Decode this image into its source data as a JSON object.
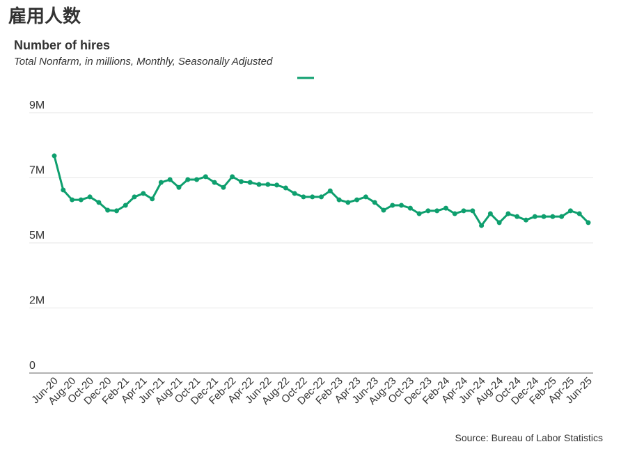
{
  "header": {
    "title": "雇用人数"
  },
  "chart_data": {
    "type": "line",
    "title": "Number of hires",
    "subtitle": "Total Nonfarm, in millions, Monthly, Seasonally Adjusted",
    "source": "Source: Bureau of Labor Statistics",
    "color": "#0e9f6e",
    "categories": [
      "Jun-20",
      null,
      "Aug-20",
      null,
      "Oct-20",
      null,
      "Dec-20",
      null,
      "Feb-21",
      null,
      "Apr-21",
      null,
      "Jun-21",
      null,
      "Aug-21",
      null,
      "Oct-21",
      null,
      "Dec-21",
      null,
      "Feb-22",
      null,
      "Apr-22",
      null,
      "Jun-22",
      null,
      "Aug-22",
      null,
      "Oct-22",
      null,
      "Dec-22",
      null,
      "Feb-23",
      null,
      "Apr-23",
      null,
      "Jun-23",
      null,
      "Aug-23",
      null,
      "Oct-23",
      null,
      "Dec-23",
      null,
      "Feb-24",
      null,
      "Apr-24",
      null,
      "Jun-24",
      null,
      "Aug-24",
      null,
      "Oct-24",
      null,
      "Dec-24",
      null,
      "Feb-25",
      null,
      "Apr-25",
      null,
      "Jun-25"
    ],
    "values": [
      7.51,
      6.33,
      5.99,
      5.99,
      6.09,
      5.9,
      5.63,
      5.61,
      5.8,
      6.09,
      6.21,
      6.02,
      6.59,
      6.69,
      6.42,
      6.69,
      6.69,
      6.79,
      6.59,
      6.42,
      6.79,
      6.62,
      6.59,
      6.52,
      6.52,
      6.5,
      6.4,
      6.21,
      6.09,
      6.09,
      6.09,
      6.3,
      5.99,
      5.9,
      5.99,
      6.09,
      5.9,
      5.63,
      5.8,
      5.8,
      5.7,
      5.51,
      5.61,
      5.61,
      5.7,
      5.51,
      5.61,
      5.61,
      5.1,
      5.51,
      5.2,
      5.51,
      5.41,
      5.29,
      5.41,
      5.41,
      5.41,
      5.41,
      5.61,
      5.51,
      5.2
    ],
    "ylim": [
      0,
      9
    ],
    "yticks": [
      0,
      {
        "value": 2.25,
        "label": "2M"
      },
      {
        "value": 4.5,
        "label": "5M"
      },
      {
        "value": 6.75,
        "label": "7M"
      },
      {
        "value": 9,
        "label": "9M"
      }
    ],
    "grid": true
  }
}
